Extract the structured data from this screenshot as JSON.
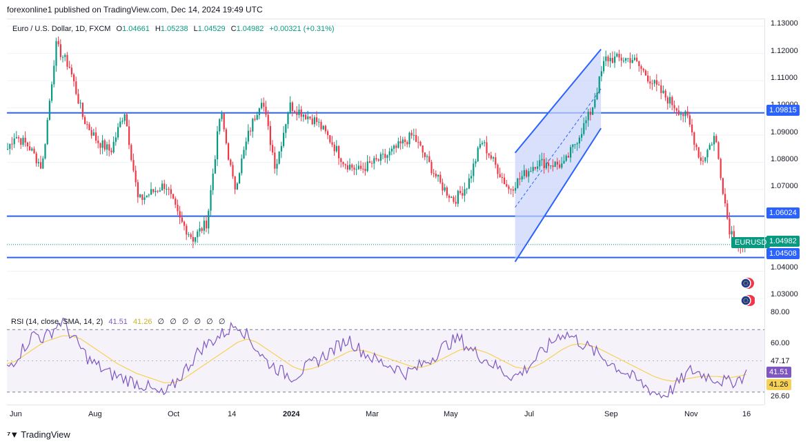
{
  "header": {
    "publisher_line": "forexonline1 published on TradingView.com, Dec 14, 2024 19:49 UTC"
  },
  "legend": {
    "symbol": "Euro / U.S. Dollar, 1D, FXCM",
    "open_label": "O",
    "open": "1.04661",
    "high_label": "H",
    "high": "1.05238",
    "low_label": "L",
    "low": "1.04529",
    "close_label": "C",
    "close": "1.04982",
    "change": "+0.00321 (+0.31%)"
  },
  "rsi_legend": {
    "title": "RSI (14, close, SMA, 14, 2)",
    "rsi": "41.51",
    "sma": "41.26",
    "empty_marks": [
      "∅",
      "∅",
      "∅",
      "∅",
      "∅",
      "∅"
    ]
  },
  "footer": {
    "brand": "TradingView"
  },
  "colors": {
    "up": "#089981",
    "down": "#f23645",
    "level_line": "#2962ff",
    "rsi_line": "#7e57c2",
    "rsi_sma": "#f7d154",
    "channel_fill": "#c7d3fb"
  },
  "symbol_tag": "EURUSD",
  "chart_data": [
    {
      "type": "candlestick",
      "title": "Euro / U.S. Dollar, 1D, FXCM",
      "ylim": [
        1.0255,
        1.1325
      ],
      "y_ticks": [
        "1.13000",
        "1.12000",
        "1.11000",
        "1.10000",
        "1.09000",
        "1.08000",
        "1.07000",
        "1.04000",
        "1.03000"
      ],
      "horizontal_levels": [
        {
          "value": 1.09815,
          "label": "1.09815"
        },
        {
          "value": 1.06024,
          "label": "1.06024"
        },
        {
          "value": 1.04508,
          "label": "1.04508"
        }
      ],
      "last_price": {
        "value": 1.04982,
        "label": "1.04982"
      },
      "x_ticks": [
        "Jun",
        "Aug",
        "Oct",
        "14",
        "2024",
        "Mar",
        "May",
        "Jul",
        "Sep",
        "Nov",
        "16"
      ],
      "channel": {
        "upper": [
          [
            "Jun 2024",
            1.0835
          ],
          [
            "Aug 2024",
            1.1215
          ]
        ],
        "lower": [
          [
            "Jun 2024",
            1.0435
          ],
          [
            "Aug 2024",
            1.0925
          ]
        ]
      },
      "close_path": [
        [
          "May 2023",
          1.075
        ],
        [
          "May 2023",
          1.07
        ],
        [
          "Jun 2023",
          1.078
        ],
        [
          "Jun 2023",
          1.09
        ],
        [
          "Jun 2023",
          1.086
        ],
        [
          "Jul 2023",
          1.096
        ],
        [
          "Jul 2023",
          1.123
        ],
        [
          "Jul 2023",
          1.115
        ],
        [
          "Aug 2023",
          1.099
        ],
        [
          "Aug 2023",
          1.088
        ],
        [
          "Aug 2023",
          1.084
        ],
        [
          "Sep 2023",
          1.072
        ],
        [
          "Sep 2023",
          1.066
        ],
        [
          "Oct 2023",
          1.052
        ],
        [
          "Oct 2023",
          1.058
        ],
        [
          "Oct 2023",
          1.059
        ],
        [
          "Nov 2023",
          1.07
        ],
        [
          "Nov 2023",
          1.09
        ],
        [
          "Nov 2023",
          1.099
        ],
        [
          "Dec 2023",
          1.078
        ],
        [
          "Dec 2023",
          1.101
        ],
        [
          "Dec 2023",
          1.104
        ],
        [
          "Jan 2024",
          1.095
        ],
        [
          "Jan 2024",
          1.088
        ],
        [
          "Feb 2024",
          1.08
        ],
        [
          "Feb 2024",
          1.077
        ],
        [
          "Mar 2024",
          1.09
        ],
        [
          "Mar 2024",
          1.082
        ],
        [
          "Apr 2024",
          1.072
        ],
        [
          "Apr 2024",
          1.066
        ],
        [
          "May 2024",
          1.072
        ],
        [
          "May 2024",
          1.088
        ],
        [
          "Jun 2024",
          1.08
        ],
        [
          "Jun 2024",
          1.07
        ],
        [
          "Jul 2024",
          1.079
        ],
        [
          "Jul 2024",
          1.089
        ],
        [
          "Aug 2024",
          1.099
        ],
        [
          "Aug 2024",
          1.118
        ],
        [
          "Sep 2024",
          1.106
        ],
        [
          "Sep 2024",
          1.118
        ],
        [
          "Oct 2024",
          1.096
        ],
        [
          "Oct 2024",
          1.08
        ],
        [
          "Nov 2024",
          1.09
        ],
        [
          "Nov 2024",
          1.056
        ],
        [
          "Nov 2024",
          1.048
        ],
        [
          "Dec 2024",
          1.052
        ],
        [
          "Dec 2024",
          1.0498
        ]
      ]
    },
    {
      "type": "line",
      "title": "RSI (14, close, SMA, 14, 2)",
      "ylim": [
        22,
        82
      ],
      "y_ticks": [
        "80.00",
        "60.00",
        "26.60"
      ],
      "bands": [
        70,
        30
      ],
      "series": [
        {
          "name": "RSI",
          "last": 41.51,
          "values": [
            45,
            52,
            60,
            68,
            64,
            70,
            76,
            66,
            58,
            50,
            46,
            42,
            40,
            38,
            36,
            34,
            30,
            28,
            34,
            42,
            50,
            58,
            62,
            66,
            70,
            74,
            66,
            58,
            50,
            46,
            42,
            40,
            44,
            48,
            52,
            56,
            60,
            64,
            58,
            54,
            50,
            48,
            46,
            42,
            44,
            48,
            52,
            58,
            62,
            64,
            58,
            54,
            50,
            46,
            42,
            40,
            44,
            50,
            56,
            62,
            68,
            66,
            62,
            58,
            54,
            50,
            46,
            42,
            38,
            34,
            30,
            28,
            32,
            38,
            44,
            42,
            40,
            38,
            36,
            38,
            41.5
          ]
        },
        {
          "name": "SMA",
          "last": 41.26,
          "values": [
            48,
            50,
            54,
            58,
            62,
            64,
            66,
            66,
            64,
            60,
            56,
            52,
            48,
            45,
            42,
            40,
            38,
            36,
            36,
            38,
            42,
            46,
            50,
            54,
            58,
            62,
            64,
            62,
            58,
            54,
            50,
            46,
            44,
            45,
            47,
            50,
            53,
            56,
            57,
            56,
            54,
            52,
            50,
            48,
            46,
            46,
            48,
            51,
            54,
            57,
            58,
            57,
            55,
            52,
            49,
            46,
            45,
            46,
            49,
            53,
            57,
            60,
            61,
            60,
            58,
            55,
            52,
            49,
            46,
            43,
            40,
            38,
            37,
            38,
            39,
            40,
            40,
            40,
            39,
            40,
            41.26
          ]
        }
      ],
      "axis_labels": {
        "rsi": "41.51",
        "sma": "41.26",
        "mid_level": "47.17"
      }
    }
  ]
}
